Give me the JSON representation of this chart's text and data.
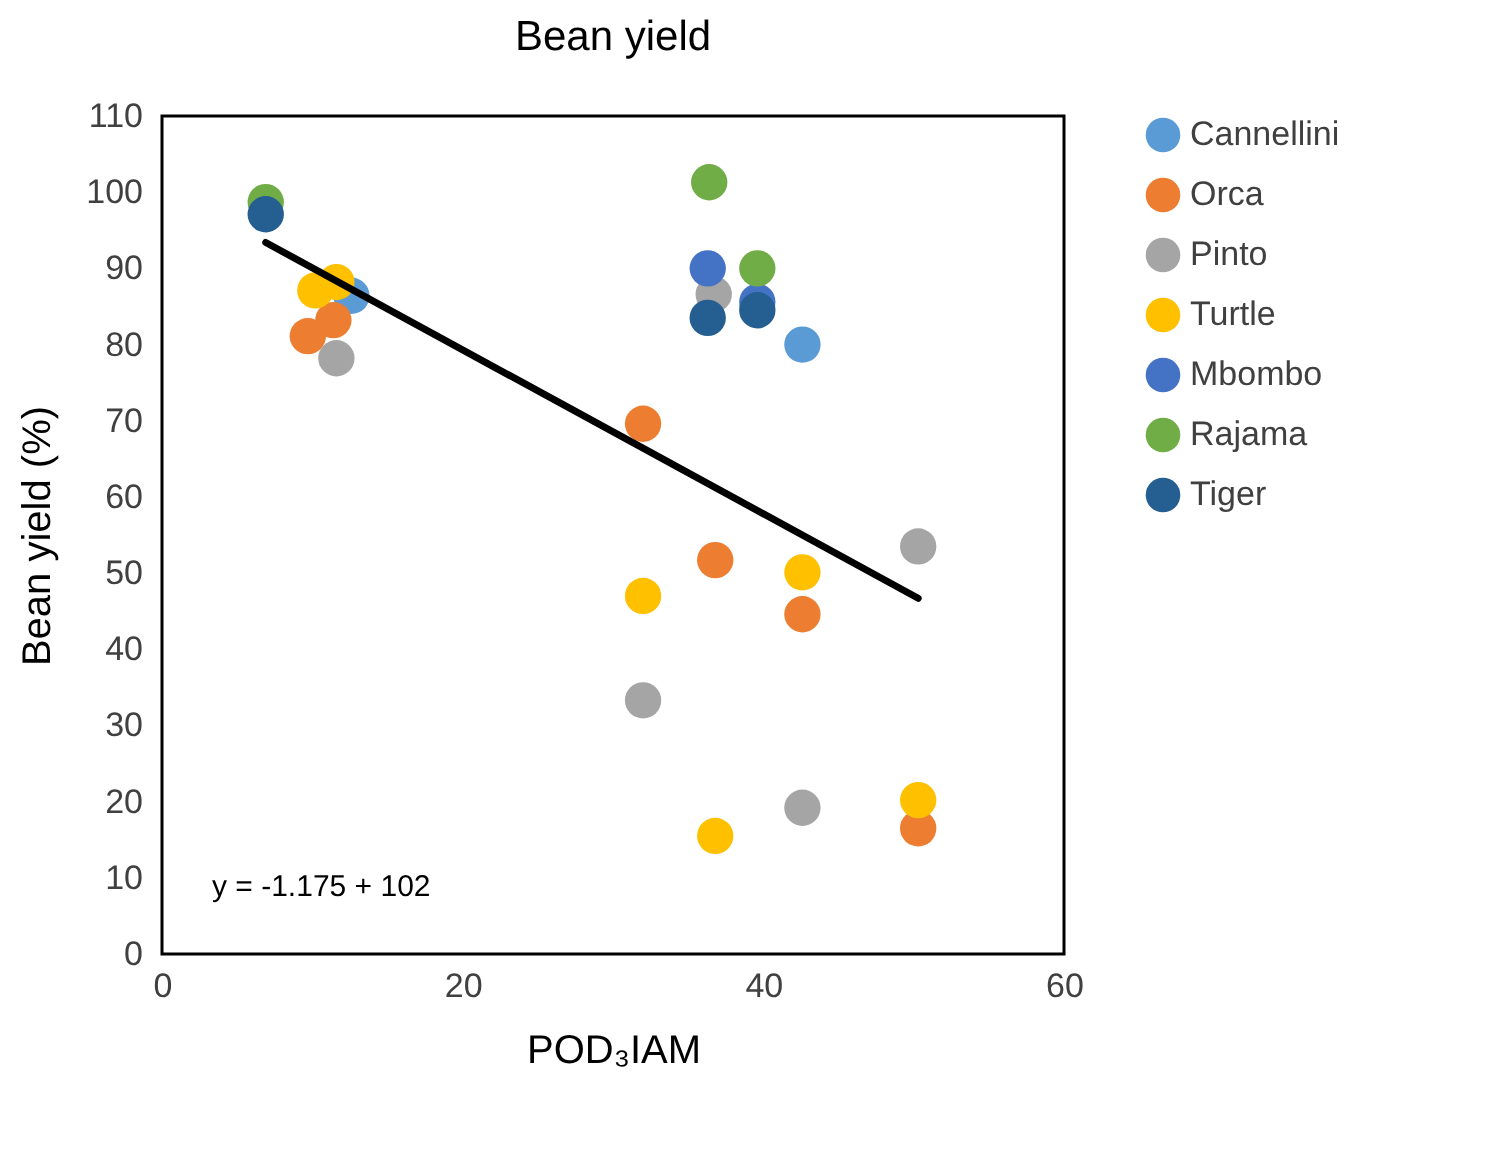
{
  "chart_data": {
    "type": "scatter",
    "title": "Bean yield",
    "xlabel": "POD₃IAM",
    "ylabel": "Bean yield (%)",
    "xlim": [
      0,
      60
    ],
    "xticks": [
      0,
      20,
      40,
      60
    ],
    "ylim": [
      0,
      110
    ],
    "yticks": [
      0,
      10,
      20,
      30,
      40,
      50,
      60,
      70,
      80,
      90,
      100,
      110
    ],
    "grid": false,
    "legend": "right",
    "marker": "circle",
    "annotations": [
      "y = -1.175 + 102"
    ],
    "series": [
      {
        "name": "Cannellini",
        "color": "#5b9bd5",
        "x": [
          12.6,
          42.6
        ],
        "values": [
          86.4,
          80.0
        ]
      },
      {
        "name": "Orca",
        "color": "#ed7d31",
        "x": [
          9.7,
          11.4,
          32.0,
          36.8,
          42.6,
          50.3
        ],
        "values": [
          81.1,
          83.2,
          69.6,
          51.7,
          44.6,
          16.5
        ]
      },
      {
        "name": "Pinto",
        "color": "#a5a5a5",
        "x": [
          11.6,
          36.7,
          50.3,
          32.0,
          42.6
        ],
        "values": [
          78.2,
          86.6,
          53.5,
          33.3,
          19.2
        ]
      },
      {
        "name": "Turtle",
        "color": "#ffc000",
        "x": [
          10.2,
          11.6,
          32.0,
          42.6,
          36.8,
          50.3
        ],
        "values": [
          87.1,
          88.2,
          47.0,
          50.1,
          15.5,
          20.2
        ]
      },
      {
        "name": "Mbombo",
        "color": "#4472c4",
        "x": [
          36.3,
          39.6
        ],
        "values": [
          90.0,
          85.6
        ]
      },
      {
        "name": "Rajama",
        "color": "#70ad47",
        "x": [
          6.9,
          36.4,
          39.6
        ],
        "values": [
          98.7,
          101.3,
          90.0
        ]
      },
      {
        "name": "Tiger",
        "color": "#255e91",
        "x": [
          6.9,
          36.3,
          39.6
        ],
        "values": [
          97.1,
          83.5,
          84.5
        ]
      },
      {
        "type": "line",
        "marker": "none",
        "color": "#000000",
        "x": [
          6.9,
          50.3
        ],
        "values": [
          93.4,
          46.7
        ]
      }
    ]
  }
}
